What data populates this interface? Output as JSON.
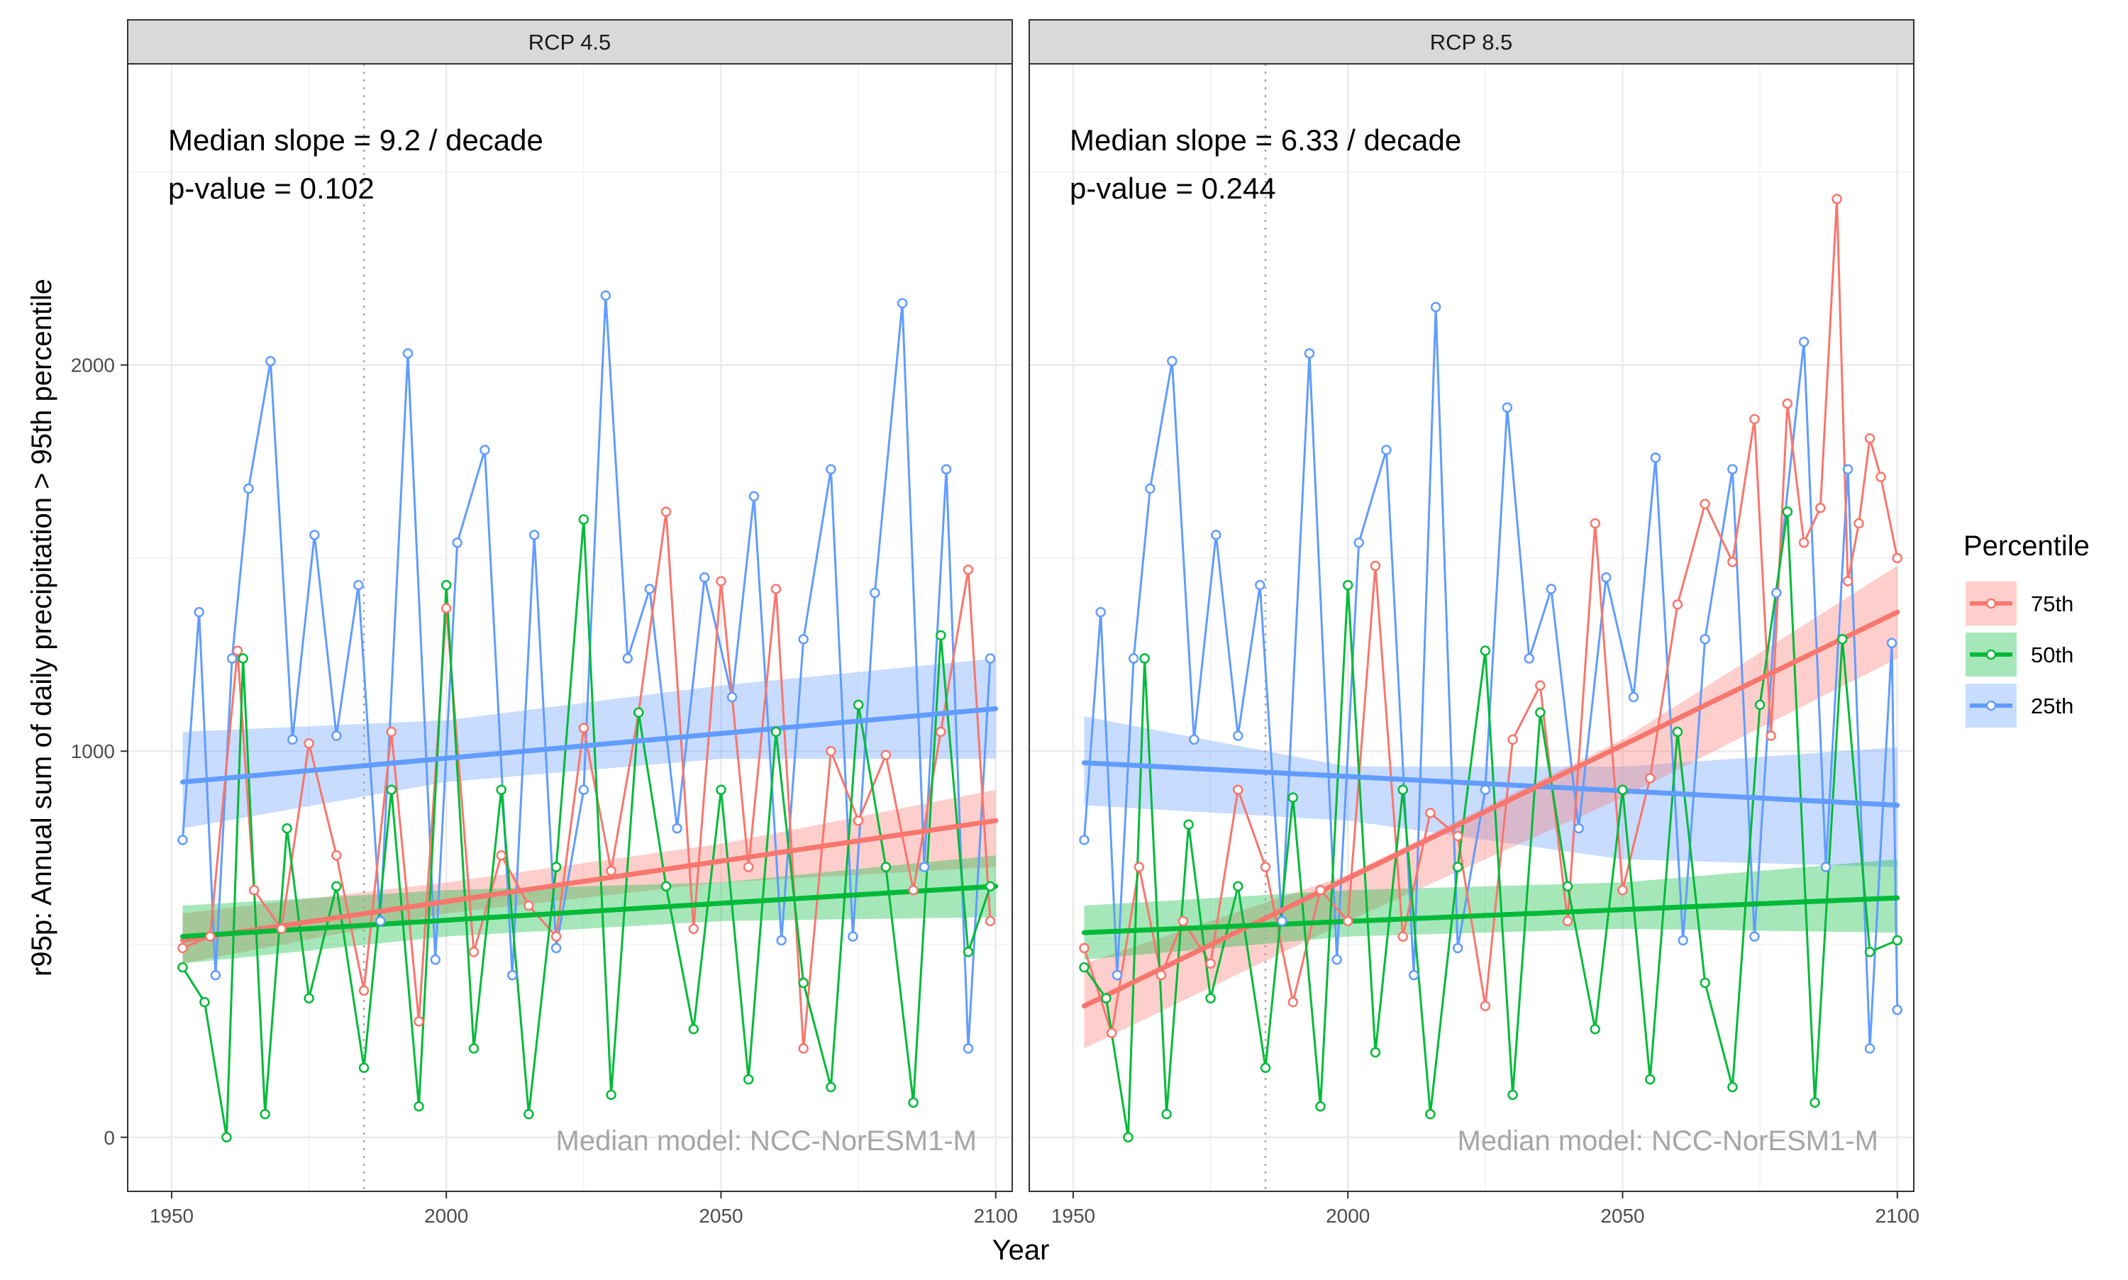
{
  "chart_data": {
    "type": "line",
    "xlabel": "Year",
    "ylabel": "r95p: Annual sum of daily precipitation > 95th percentile",
    "xlim": [
      1942,
      2103
    ],
    "ylim": [
      -140,
      2780
    ],
    "x_ticks": [
      1950,
      2000,
      2050,
      2100
    ],
    "y_ticks": [
      0,
      1000,
      2000
    ],
    "grid": true,
    "reference_line_x": 1985,
    "legend": {
      "title": "Percentile",
      "position": "right",
      "entries": [
        "75th",
        "50th",
        "25th"
      ]
    },
    "series_colors": {
      "75th": "#F8766D",
      "50th": "#00BA38",
      "25th": "#619CFF"
    },
    "panels": [
      {
        "strip": "RCP 4.5",
        "annotation_slope": "Median slope = 9.2 / decade",
        "annotation_p": "p-value = 0.102",
        "watermark": "Median model: NCC-NorESM1-M",
        "series": [
          {
            "name": "75th",
            "x": [
              1952,
              1957,
              1962,
              1965,
              1970,
              1975,
              1980,
              1985,
              1990,
              1995,
              2000,
              2005,
              2010,
              2015,
              2020,
              2025,
              2030,
              2035,
              2040,
              2045,
              2050,
              2055,
              2060,
              2065,
              2070,
              2075,
              2080,
              2085,
              2090,
              2095,
              2099
            ],
            "values": [
              490,
              520,
              1260,
              640,
              540,
              1020,
              730,
              380,
              1050,
              300,
              1370,
              480,
              730,
              600,
              520,
              1060,
              690,
              1100,
              1620,
              540,
              1440,
              700,
              1420,
              230,
              1000,
              820,
              990,
              640,
              1050,
              1470,
              560
            ],
            "trend": [
              [
                1952,
                510
              ],
              [
                2100,
                820
              ]
            ],
            "band": [
              [
                1952,
                450,
                580
              ],
              [
                2000,
                580,
                660
              ],
              [
                2050,
                660,
                760
              ],
              [
                2100,
                700,
                900
              ]
            ]
          },
          {
            "name": "50th",
            "x": [
              1952,
              1956,
              1960,
              1963,
              1967,
              1971,
              1975,
              1980,
              1985,
              1990,
              1995,
              2000,
              2005,
              2010,
              2015,
              2020,
              2025,
              2030,
              2035,
              2040,
              2045,
              2050,
              2055,
              2060,
              2065,
              2070,
              2075,
              2080,
              2085,
              2090,
              2095,
              2099
            ],
            "values": [
              440,
              350,
              0,
              1240,
              60,
              800,
              360,
              650,
              180,
              900,
              80,
              1430,
              230,
              900,
              60,
              700,
              1600,
              110,
              1100,
              650,
              280,
              900,
              150,
              1050,
              400,
              130,
              1120,
              700,
              90,
              1300,
              480,
              650
            ],
            "trend": [
              [
                1952,
                520
              ],
              [
                2100,
                650
              ]
            ],
            "band": [
              [
                1952,
                450,
                600
              ],
              [
                2000,
                520,
                640
              ],
              [
                2050,
                560,
                660
              ],
              [
                2100,
                570,
                730
              ]
            ]
          },
          {
            "name": "25th",
            "x": [
              1952,
              1955,
              1958,
              1961,
              1964,
              1968,
              1972,
              1976,
              1980,
              1984,
              1988,
              1993,
              1998,
              2002,
              2007,
              2012,
              2016,
              2020,
              2025,
              2029,
              2033,
              2037,
              2042,
              2047,
              2052,
              2056,
              2061,
              2065,
              2070,
              2074,
              2078,
              2083,
              2087,
              2091,
              2095,
              2099
            ],
            "values": [
              770,
              1360,
              420,
              1240,
              1680,
              2010,
              1030,
              1560,
              1040,
              1430,
              560,
              2030,
              460,
              1540,
              1780,
              420,
              1560,
              490,
              900,
              2180,
              1240,
              1420,
              800,
              1450,
              1140,
              1660,
              510,
              1290,
              1730,
              520,
              1410,
              2160,
              700,
              1730,
              230,
              1240
            ],
            "trend": [
              [
                1952,
                920
              ],
              [
                2100,
                1110
              ]
            ],
            "band": [
              [
                1952,
                800,
                1050
              ],
              [
                2000,
                920,
                1080
              ],
              [
                2050,
                980,
                1170
              ],
              [
                2100,
                980,
                1240
              ]
            ]
          }
        ]
      },
      {
        "strip": "RCP 8.5",
        "annotation_slope": "Median slope = 6.33 / decade",
        "annotation_p": "p-value = 0.244",
        "watermark": "Median model: NCC-NorESM1-M",
        "series": [
          {
            "name": "75th",
            "x": [
              1952,
              1957,
              1962,
              1966,
              1970,
              1975,
              1980,
              1985,
              1990,
              1995,
              2000,
              2005,
              2010,
              2015,
              2020,
              2025,
              2030,
              2035,
              2040,
              2045,
              2050,
              2055,
              2060,
              2065,
              2070,
              2074,
              2077,
              2080,
              2083,
              2086,
              2089,
              2091,
              2093,
              2095,
              2097,
              2100
            ],
            "values": [
              490,
              270,
              700,
              420,
              560,
              450,
              900,
              700,
              350,
              640,
              560,
              1480,
              520,
              840,
              780,
              340,
              1030,
              1170,
              560,
              1590,
              640,
              930,
              1380,
              1640,
              1490,
              1860,
              1040,
              1900,
              1540,
              1630,
              2430,
              1440,
              1590,
              1810,
              1710,
              1500
            ],
            "trend": [
              [
                1952,
                340
              ],
              [
                2100,
                1360
              ]
            ],
            "band": [
              [
                1952,
                230,
                450
              ],
              [
                2000,
                560,
                680
              ],
              [
                2050,
                880,
                1030
              ],
              [
                2100,
                1240,
                1480
              ]
            ]
          },
          {
            "name": "50th",
            "x": [
              1952,
              1956,
              1960,
              1963,
              1967,
              1971,
              1975,
              1980,
              1985,
              1990,
              1995,
              2000,
              2005,
              2010,
              2015,
              2020,
              2025,
              2030,
              2035,
              2040,
              2045,
              2050,
              2055,
              2060,
              2065,
              2070,
              2075,
              2080,
              2085,
              2090,
              2095,
              2100
            ],
            "values": [
              440,
              360,
              0,
              1240,
              60,
              810,
              360,
              650,
              180,
              880,
              80,
              1430,
              220,
              900,
              60,
              700,
              1260,
              110,
              1100,
              650,
              280,
              900,
              150,
              1050,
              400,
              130,
              1120,
              1620,
              90,
              1290,
              480,
              510
            ],
            "trend": [
              [
                1952,
                530
              ],
              [
                2100,
                620
              ]
            ],
            "band": [
              [
                1952,
                460,
                600
              ],
              [
                2000,
                520,
                640
              ],
              [
                2050,
                540,
                660
              ],
              [
                2100,
                530,
                720
              ]
            ]
          },
          {
            "name": "25th",
            "x": [
              1952,
              1955,
              1958,
              1961,
              1964,
              1968,
              1972,
              1976,
              1980,
              1984,
              1988,
              1993,
              1998,
              2002,
              2007,
              2012,
              2016,
              2020,
              2025,
              2029,
              2033,
              2037,
              2042,
              2047,
              2052,
              2056,
              2061,
              2065,
              2070,
              2074,
              2078,
              2083,
              2087,
              2091,
              2095,
              2099,
              2100
            ],
            "values": [
              770,
              1360,
              420,
              1240,
              1680,
              2010,
              1030,
              1560,
              1040,
              1430,
              560,
              2030,
              460,
              1540,
              1780,
              420,
              2150,
              490,
              900,
              1890,
              1240,
              1420,
              800,
              1450,
              1140,
              1760,
              510,
              1290,
              1730,
              520,
              1410,
              2060,
              700,
              1730,
              230,
              1280,
              330
            ],
            "trend": [
              [
                1952,
                970
              ],
              [
                2100,
                860
              ]
            ],
            "band": [
              [
                1952,
                860,
                1090
              ],
              [
                2000,
                820,
                960
              ],
              [
                2050,
                720,
                960
              ],
              [
                2100,
                700,
                1010
              ]
            ]
          }
        ]
      }
    ]
  }
}
